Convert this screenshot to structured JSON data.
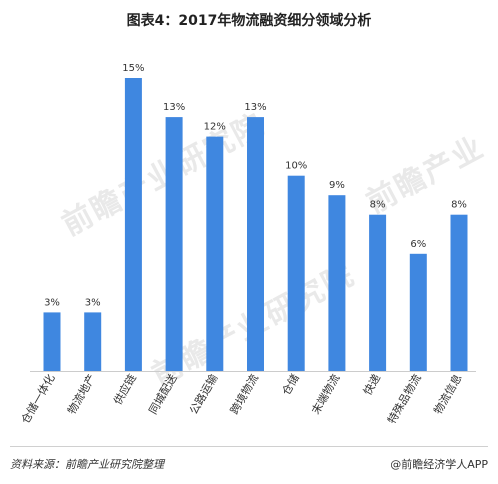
{
  "chart_data": {
    "type": "bar",
    "title": "图表4：2017年物流融资细分领域分析",
    "categories": [
      "仓储一体化",
      "物流地产",
      "供应链",
      "同城配送",
      "公路运输",
      "跨境物流",
      "仓储",
      "末端物流",
      "快递",
      "特殊品物流",
      "物流信息"
    ],
    "values": [
      3,
      3,
      15,
      13,
      12,
      13,
      10,
      9,
      8,
      6,
      8
    ],
    "value_labels": [
      "3%",
      "3%",
      "15%",
      "13%",
      "12%",
      "13%",
      "10%",
      "9%",
      "8%",
      "6%",
      "8%"
    ],
    "ylim": [
      0,
      15
    ],
    "grid": false,
    "bar_color": "#3f87e0"
  },
  "footer": {
    "source": "资料来源：前瞻产业研究院整理",
    "brand": "@前瞻经济学人APP"
  }
}
